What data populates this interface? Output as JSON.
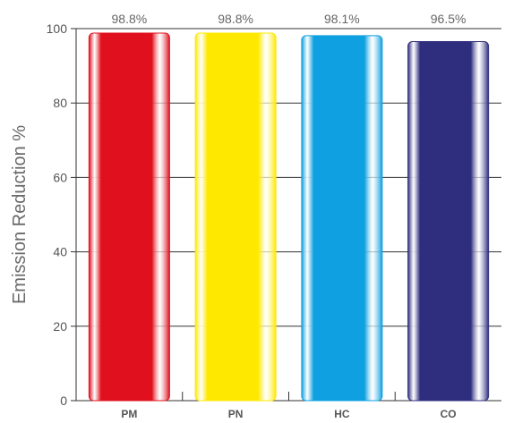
{
  "chart_data": {
    "type": "bar",
    "categories": [
      "PM",
      "PN",
      "HC",
      "CO"
    ],
    "values": [
      98.8,
      98.8,
      98.1,
      96.5
    ],
    "data_labels": [
      "98.8%",
      "98.8%",
      "98.1%",
      "96.5%"
    ],
    "colors": [
      "#e0101e",
      "#ffe800",
      "#0ea0e0",
      "#2e2d7e"
    ],
    "ylabel": "Emission Reduction %",
    "xlabel": "",
    "title": "",
    "ylim": [
      0,
      100
    ],
    "yticks": [
      0,
      20,
      40,
      60,
      80,
      100
    ],
    "grid": true,
    "legend": "none"
  }
}
